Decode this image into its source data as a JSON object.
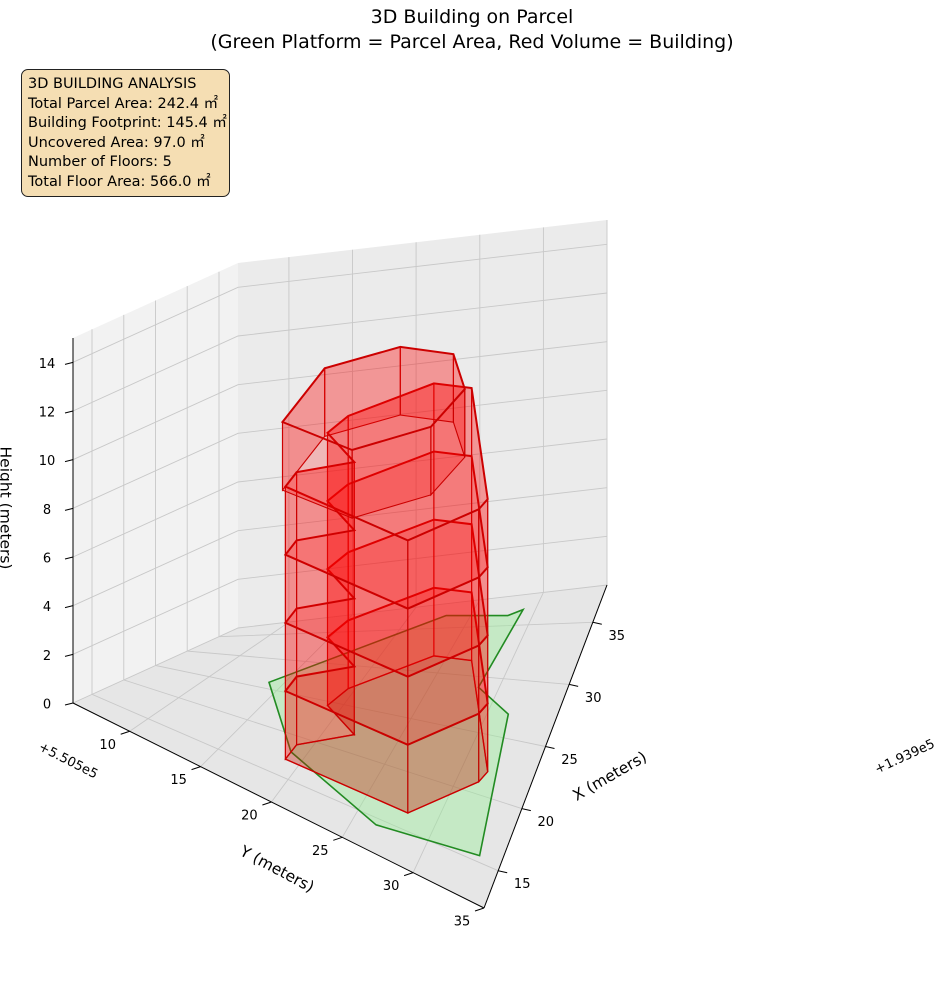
{
  "chart_data": {
    "type": "3d-polygons",
    "title": "3D Building on Parcel",
    "subtitle": "(Green Platform = Parcel Area, Red Volume = Building)",
    "xlabel": "X (meters)",
    "ylabel": "Y (meters)",
    "zlabel": "Height (meters)",
    "x_offset_label": "+1.939e5",
    "y_offset_label": "+5.505e5",
    "xlim": [
      12,
      38
    ],
    "ylim": [
      6,
      35
    ],
    "zlim": [
      0,
      15
    ],
    "x_ticks": [
      "15",
      "20",
      "25",
      "30",
      "35"
    ],
    "y_ticks": [
      "10",
      "15",
      "20",
      "25",
      "30",
      "35"
    ],
    "z_ticks": [
      "0",
      "2",
      "4",
      "6",
      "8",
      "10",
      "12",
      "14"
    ],
    "colors": {
      "parcel_fill": "#90ee90",
      "parcel_edge": "#228b22",
      "building_fill": "#ff0000",
      "building_edge": "#cc0000",
      "info_box_fill": "#f5deb3"
    },
    "parcel": {
      "name": "Parcel Area",
      "z": 0,
      "polygon": [
        [
          14.4,
          26.5
        ],
        [
          15.5,
          33.5
        ],
        [
          27,
          31.5
        ],
        [
          29,
          28.5
        ],
        [
          36.5,
          29
        ],
        [
          36,
          28
        ],
        [
          36.5,
          23
        ],
        [
          26,
          14
        ],
        [
          18,
          19
        ]
      ]
    },
    "building": {
      "name": "Building",
      "floors": 5,
      "floor_height": 2.8,
      "footprint": [
        [
          17,
          19
        ],
        [
          16.5,
          28
        ],
        [
          21,
          31.5
        ],
        [
          22,
          31.8
        ],
        [
          31.5,
          27
        ],
        [
          31.8,
          24
        ],
        [
          27,
          19.5
        ],
        [
          24.5,
          19
        ],
        [
          22,
          22
        ],
        [
          19,
          19
        ]
      ],
      "top_floor_footprint": [
        [
          16.5,
          19
        ],
        [
          16.5,
          24
        ],
        [
          21,
          28
        ],
        [
          25,
          29
        ],
        [
          28,
          27
        ],
        [
          28,
          23
        ],
        [
          24,
          19
        ]
      ]
    },
    "info_box": {
      "heading": "3D BUILDING ANALYSIS",
      "total_parcel_area": "Total Parcel Area: 242.4 ㎡",
      "building_footprint": "Building Footprint: 145.4 ㎡",
      "uncovered_area": "Uncovered Area: 97.0 ㎡",
      "number_of_floors": "Number of Floors: 5",
      "total_floor_area": "Total Floor Area: 566.0 ㎡"
    }
  }
}
